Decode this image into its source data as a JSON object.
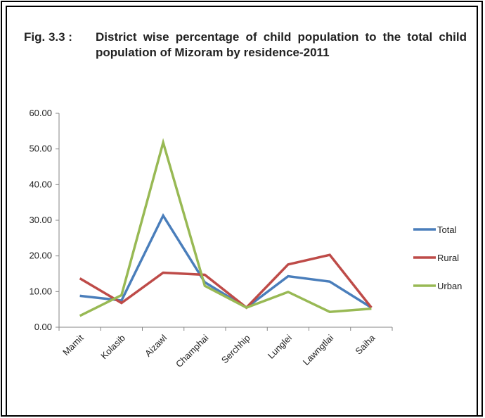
{
  "figure": {
    "prefix": "Fig. 3.3 :",
    "caption": "District wise percentage of child population to the total child population of Mizoram by residence-2011"
  },
  "chart_data": {
    "type": "line",
    "categories": [
      "Mamit",
      "Kolasib",
      "Aizawl",
      "Champhai",
      "Serchhip",
      "Lunglei",
      "Lawngtlai",
      "Saiha"
    ],
    "y_ticks": [
      "0.00",
      "10.00",
      "20.00",
      "30.00",
      "40.00",
      "50.00",
      "60.00"
    ],
    "ylim": [
      0,
      60
    ],
    "grid": false,
    "legend_position": "right",
    "series": [
      {
        "name": "Total",
        "color": "#4a7ebb",
        "values": [
          8.8,
          7.5,
          31.3,
          12.6,
          5.5,
          14.3,
          12.8,
          5.5
        ]
      },
      {
        "name": "Rural",
        "color": "#be4b48",
        "values": [
          13.7,
          6.8,
          15.3,
          14.7,
          5.5,
          17.6,
          20.3,
          5.5
        ]
      },
      {
        "name": "Urban",
        "color": "#98b954",
        "values": [
          3.2,
          9.0,
          51.8,
          11.6,
          5.5,
          9.9,
          4.3,
          5.2
        ]
      }
    ]
  }
}
